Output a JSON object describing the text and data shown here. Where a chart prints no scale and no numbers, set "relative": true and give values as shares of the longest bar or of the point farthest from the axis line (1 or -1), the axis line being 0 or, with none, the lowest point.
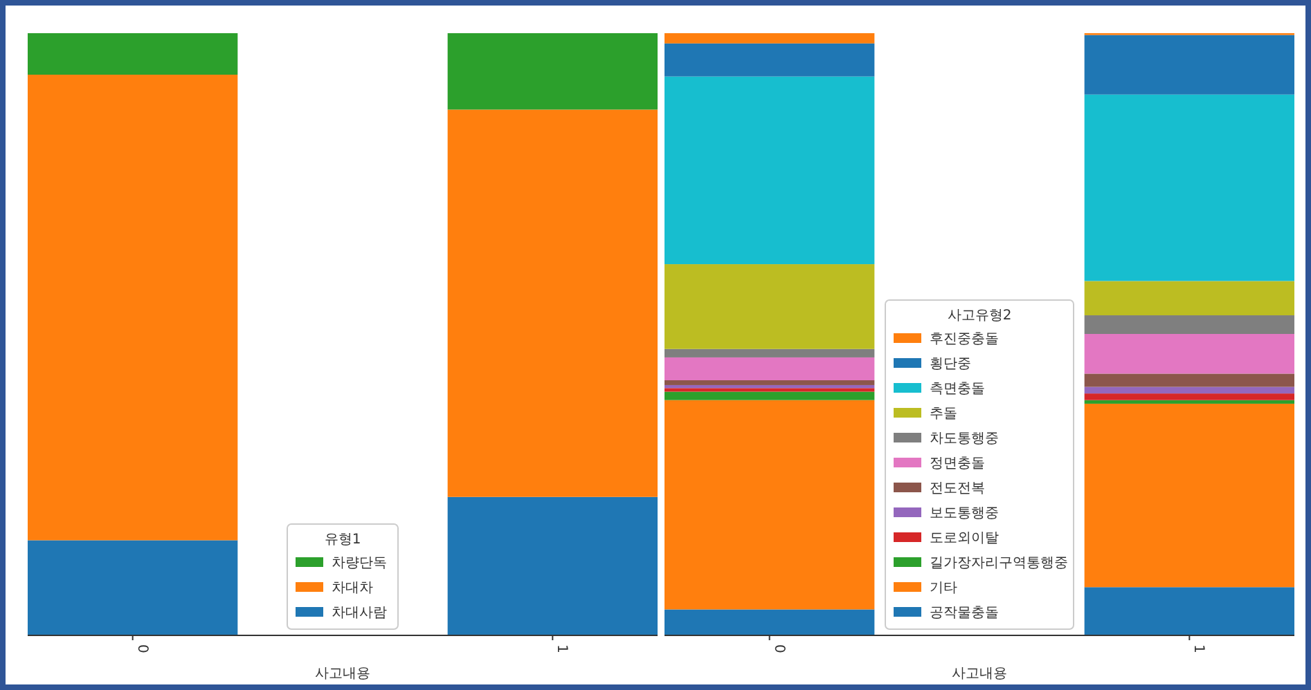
{
  "chart_data": [
    {
      "type": "bar",
      "stacked": true,
      "relative": true,
      "categories": [
        "0",
        "1"
      ],
      "xlabel": "사고내용",
      "legend_title": "유형1",
      "legend": "bottom",
      "series": [
        {
          "name": "차대사람",
          "color": "#1f77b4",
          "values": [
            0.157,
            0.229
          ]
        },
        {
          "name": "차대차",
          "color": "#ff7f0e",
          "values": [
            0.774,
            0.644
          ]
        },
        {
          "name": "차량단독",
          "color": "#2ca02c",
          "values": [
            0.069,
            0.127
          ]
        }
      ]
    },
    {
      "type": "bar",
      "stacked": true,
      "relative": true,
      "categories": [
        "0",
        "1"
      ],
      "xlabel": "사고내용",
      "legend_title": "사고유형2",
      "legend": "bottom",
      "series": [
        {
          "name": "공작물충돌",
          "color": "#1f77b4",
          "values": [
            0.042,
            0.079
          ]
        },
        {
          "name": "기타",
          "color": "#ff7f0e",
          "values": [
            0.348,
            0.305
          ]
        },
        {
          "name": "길가장자리구역통행중",
          "color": "#2ca02c",
          "values": [
            0.014,
            0.006
          ]
        },
        {
          "name": "도로외이탈",
          "color": "#d62728",
          "values": [
            0.006,
            0.011
          ]
        },
        {
          "name": "보도통행중",
          "color": "#9467bd",
          "values": [
            0.005,
            0.011
          ]
        },
        {
          "name": "전도전복",
          "color": "#8c564b",
          "values": [
            0.008,
            0.022
          ]
        },
        {
          "name": "정면충돌",
          "color": "#e377c2",
          "values": [
            0.038,
            0.066
          ]
        },
        {
          "name": "차도통행중",
          "color": "#7f7f7f",
          "values": [
            0.014,
            0.031
          ]
        },
        {
          "name": "추돌",
          "color": "#bcbd22",
          "values": [
            0.141,
            0.057
          ]
        },
        {
          "name": "측면충돌",
          "color": "#17becf",
          "values": [
            0.312,
            0.31
          ]
        },
        {
          "name": "횡단중",
          "color": "#1f77b4",
          "values": [
            0.055,
            0.099
          ]
        },
        {
          "name": "후진중충돌",
          "color": "#ff7f0e",
          "values": [
            0.017,
            0.003
          ]
        }
      ]
    }
  ]
}
